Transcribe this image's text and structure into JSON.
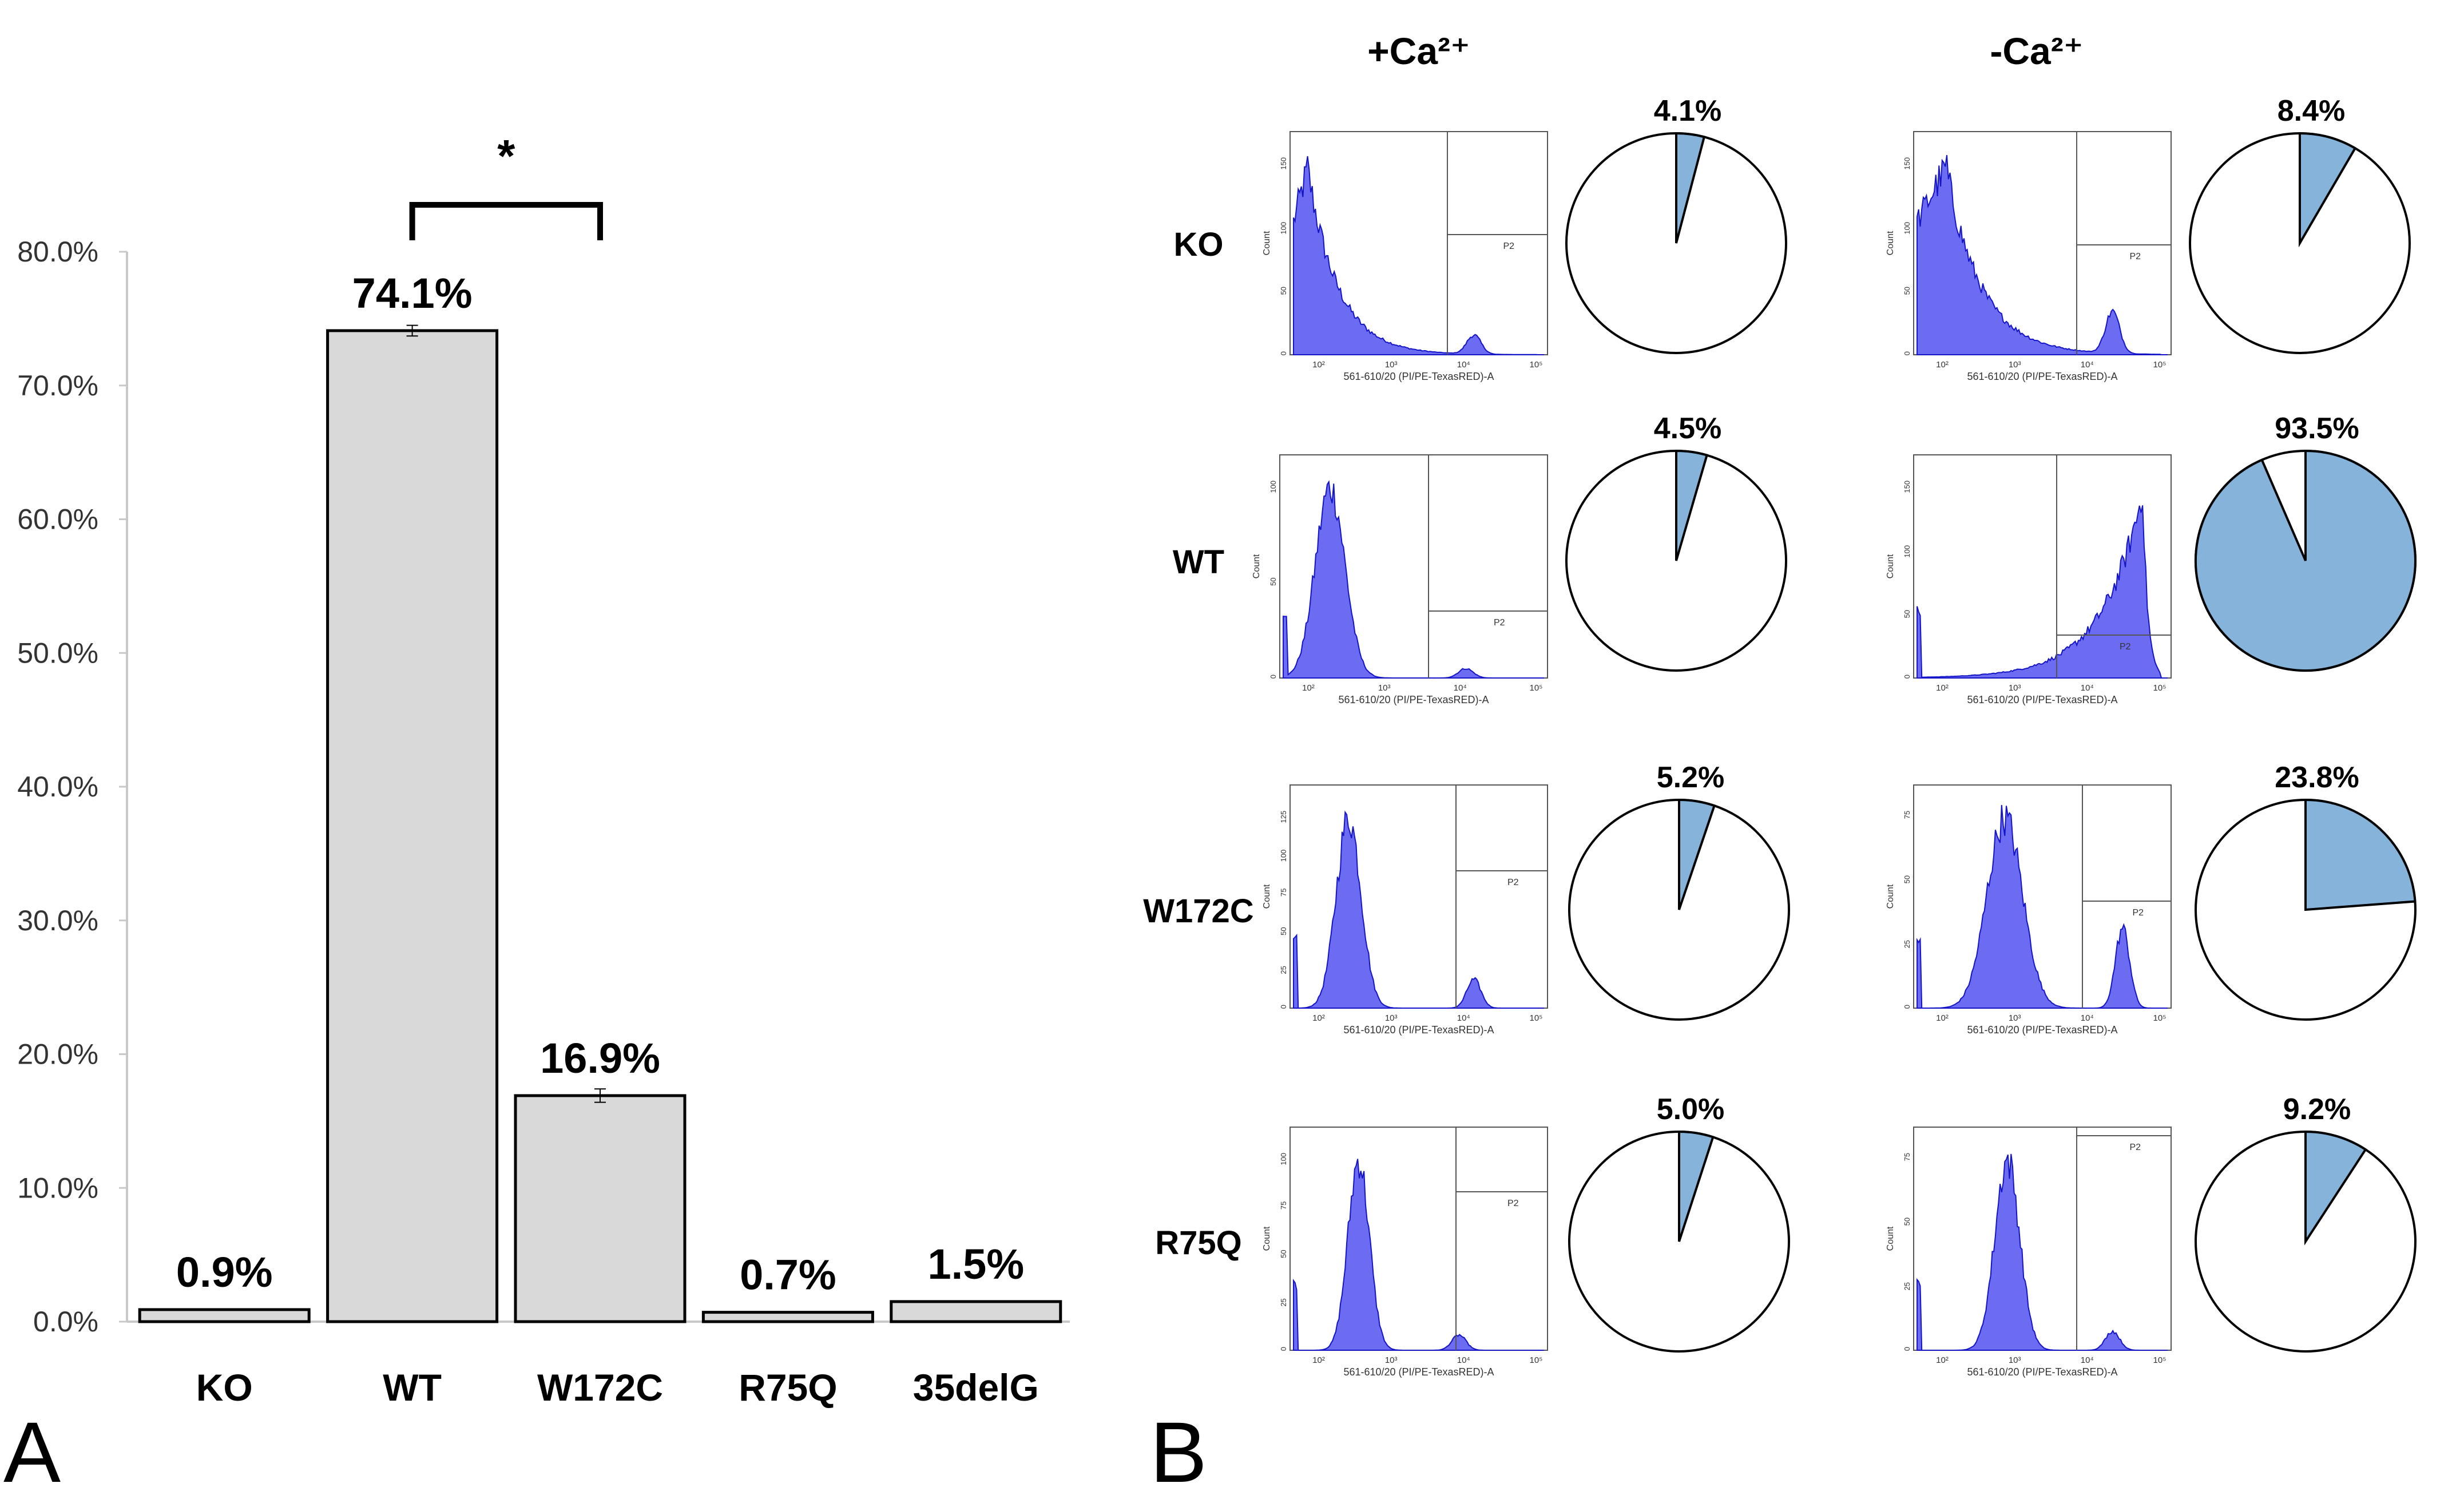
{
  "panels": {
    "a_label": "A",
    "b_label": "B"
  },
  "chart_data": [
    {
      "type": "bar",
      "panel": "A",
      "categories": [
        "KO",
        "WT",
        "W172C",
        "R75Q",
        "35delG"
      ],
      "values": [
        0.9,
        74.1,
        16.9,
        0.7,
        1.5
      ],
      "value_labels": [
        "0.9%",
        "74.1%",
        "16.9%",
        "0.7%",
        "1.5%"
      ],
      "error_bars": [
        0,
        0.4,
        0.5,
        0,
        0
      ],
      "ylim": [
        0,
        80
      ],
      "yticks": [
        0,
        10,
        20,
        30,
        40,
        50,
        60,
        70,
        80
      ],
      "ytick_labels": [
        "0.0%",
        "10.0%",
        "20.0%",
        "30.0%",
        "40.0%",
        "50.0%",
        "60.0%",
        "70.0%",
        "80.0%"
      ],
      "significance": {
        "between": [
          "WT",
          "W172C"
        ],
        "label": "*"
      },
      "xlabel": "",
      "ylabel": "",
      "grid": false,
      "bar_color": "#d9d9d9",
      "edge_color": "#000000"
    },
    {
      "type": "pie",
      "panel": "B",
      "conditions": [
        "+Ca²⁺",
        "-Ca²⁺"
      ],
      "rows": [
        "KO",
        "WT",
        "W172C",
        "R75Q"
      ],
      "percentages": {
        "+Ca²⁺": [
          4.1,
          4.5,
          5.2,
          5.0
        ],
        "-Ca²⁺": [
          8.4,
          93.5,
          23.8,
          9.2
        ]
      },
      "labels": {
        "+Ca²⁺": [
          "4.1%",
          "4.5%",
          "5.2%",
          "5.0%"
        ],
        "-Ca²⁺": [
          "8.4%",
          "93.5%",
          "23.8%",
          "9.2%"
        ]
      },
      "slice_color": "#85b3da",
      "rest_color": "#ffffff"
    },
    {
      "type": "histogram",
      "panel": "B",
      "description_axes": {
        "xlabel": "561-610/20 (PI/PE-TexasRED)-A",
        "ylabel": "Count",
        "xtick_labels": [
          "10²",
          "10³",
          "10⁴",
          "10⁵"
        ],
        "gate_label": "P2"
      },
      "yticks": {
        "+Ca²⁺": [
          [
            0,
            50,
            100,
            150
          ],
          [
            0,
            50,
            100
          ],
          [
            0,
            25,
            50,
            75,
            100,
            125
          ],
          [
            0,
            25,
            50,
            75,
            100
          ]
        ],
        "-Ca²⁺": [
          [
            0,
            50,
            100,
            150
          ],
          [
            0,
            50,
            100,
            150
          ],
          [
            0,
            25,
            50,
            75
          ],
          [
            0,
            25,
            50,
            75
          ]
        ]
      },
      "fill_color": "#6c6cf2",
      "line_color": "#1414c8"
    }
  ]
}
